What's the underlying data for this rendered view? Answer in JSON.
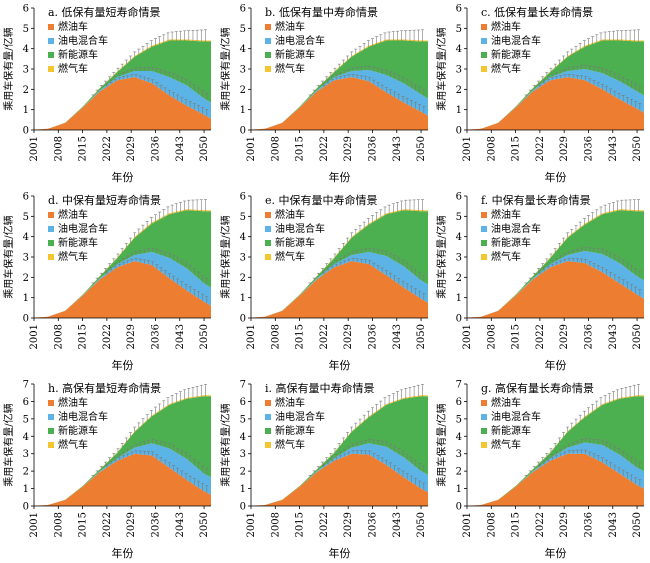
{
  "chart_data": [
    {
      "type": "area",
      "stacked": true,
      "title": "a. 低保有量短寿命情景",
      "xlabel": "年份",
      "ylabel": "乘用车保有量/亿辆",
      "x_ticks": [
        "2001",
        "2008",
        "2015",
        "2022",
        "2029",
        "2036",
        "2043",
        "2050"
      ],
      "y_ticks": [
        "0",
        "1",
        "2",
        "3",
        "4",
        "5",
        "6"
      ],
      "ylim": [
        0,
        6
      ],
      "xlim": [
        2001,
        2052
      ],
      "legend": {
        "position": "top-left",
        "entries": [
          "燃油车",
          "油电混合车",
          "新能源车",
          "燃气车"
        ]
      },
      "x": [
        2001,
        2005,
        2010,
        2015,
        2020,
        2025,
        2030,
        2035,
        2040,
        2045,
        2050,
        2052
      ],
      "series": [
        {
          "name": "燃油车",
          "color": "#ED7D31",
          "values": [
            0.02,
            0.06,
            0.35,
            1.1,
            1.9,
            2.45,
            2.6,
            2.3,
            1.7,
            1.2,
            0.75,
            0.55
          ]
        },
        {
          "name": "油电混合车",
          "color": "#5BB3E6",
          "values": [
            0,
            0,
            0,
            0.01,
            0.05,
            0.15,
            0.3,
            0.6,
            0.9,
            1.0,
            0.8,
            0.8
          ]
        },
        {
          "name": "新能源车",
          "color": "#4CAF50",
          "values": [
            0,
            0,
            0.01,
            0.03,
            0.1,
            0.25,
            0.7,
            1.2,
            1.8,
            2.2,
            2.8,
            3.0
          ]
        },
        {
          "name": "燃气车",
          "color": "#F2C531",
          "values": [
            0,
            0,
            0,
            0.01,
            0.02,
            0.03,
            0.04,
            0.05,
            0.05,
            0.05,
            0.05,
            0.05
          ]
        }
      ]
    },
    {
      "type": "area",
      "stacked": true,
      "title": "b. 低保有量中寿命情景",
      "xlabel": "年份",
      "ylabel": "乘用车保有量/亿辆",
      "x_ticks": [
        "2001",
        "2008",
        "2015",
        "2022",
        "2029",
        "2036",
        "2043",
        "2050"
      ],
      "y_ticks": [
        "0",
        "1",
        "2",
        "3",
        "4",
        "5",
        "6"
      ],
      "ylim": [
        0,
        6
      ],
      "xlim": [
        2001,
        2052
      ],
      "legend": {
        "position": "top-left",
        "entries": [
          "燃油车",
          "油电混合车",
          "新能源车",
          "燃气车"
        ]
      },
      "x": [
        2001,
        2005,
        2010,
        2015,
        2020,
        2025,
        2030,
        2035,
        2040,
        2045,
        2050,
        2052
      ],
      "series": [
        {
          "name": "燃油车",
          "color": "#ED7D31",
          "values": [
            0.02,
            0.06,
            0.35,
            1.1,
            1.9,
            2.45,
            2.6,
            2.4,
            1.85,
            1.35,
            0.9,
            0.7
          ]
        },
        {
          "name": "油电混合车",
          "color": "#5BB3E6",
          "values": [
            0,
            0,
            0,
            0.01,
            0.05,
            0.15,
            0.3,
            0.55,
            0.85,
            0.95,
            0.85,
            0.85
          ]
        },
        {
          "name": "新能源车",
          "color": "#4CAF50",
          "values": [
            0,
            0,
            0.01,
            0.03,
            0.1,
            0.25,
            0.7,
            1.15,
            1.7,
            2.1,
            2.6,
            2.8
          ]
        },
        {
          "name": "燃气车",
          "color": "#F2C531",
          "values": [
            0,
            0,
            0,
            0.01,
            0.02,
            0.03,
            0.04,
            0.05,
            0.05,
            0.05,
            0.05,
            0.05
          ]
        }
      ]
    },
    {
      "type": "area",
      "stacked": true,
      "title": "c. 低保有量长寿命情景",
      "xlabel": "年份",
      "ylabel": "乘用车保有量/亿辆",
      "x_ticks": [
        "2001",
        "2008",
        "2015",
        "2022",
        "2029",
        "2036",
        "2043",
        "2050"
      ],
      "y_ticks": [
        "0",
        "1",
        "2",
        "3",
        "4",
        "5",
        "6"
      ],
      "ylim": [
        0,
        6
      ],
      "xlim": [
        2001,
        2052
      ],
      "legend": {
        "position": "top-left",
        "entries": [
          "燃油车",
          "油电混合车",
          "新能源车",
          "燃气车"
        ]
      },
      "x": [
        2001,
        2005,
        2010,
        2015,
        2020,
        2025,
        2030,
        2035,
        2040,
        2045,
        2050,
        2052
      ],
      "series": [
        {
          "name": "燃油车",
          "color": "#ED7D31",
          "values": [
            0.02,
            0.06,
            0.35,
            1.1,
            1.9,
            2.45,
            2.6,
            2.45,
            2.0,
            1.5,
            1.05,
            0.85
          ]
        },
        {
          "name": "油电混合车",
          "color": "#5BB3E6",
          "values": [
            0,
            0,
            0,
            0.01,
            0.05,
            0.15,
            0.3,
            0.55,
            0.8,
            0.9,
            0.85,
            0.85
          ]
        },
        {
          "name": "新能源车",
          "color": "#4CAF50",
          "values": [
            0,
            0,
            0.01,
            0.03,
            0.1,
            0.25,
            0.7,
            1.1,
            1.6,
            2.0,
            2.45,
            2.65
          ]
        },
        {
          "name": "燃气车",
          "color": "#F2C531",
          "values": [
            0,
            0,
            0,
            0.01,
            0.02,
            0.03,
            0.04,
            0.05,
            0.05,
            0.05,
            0.05,
            0.05
          ]
        }
      ]
    },
    {
      "type": "area",
      "stacked": true,
      "title": "d. 中保有量短寿命情景",
      "xlabel": "年份",
      "ylabel": "乘用车保有量/亿辆",
      "x_ticks": [
        "2001",
        "2008",
        "2015",
        "2022",
        "2029",
        "2036",
        "2043",
        "2050"
      ],
      "y_ticks": [
        "0",
        "1",
        "2",
        "3",
        "4",
        "5",
        "6"
      ],
      "ylim": [
        0,
        6
      ],
      "xlim": [
        2001,
        2052
      ],
      "legend": {
        "position": "top-left",
        "entries": [
          "燃油车",
          "油电混合车",
          "新能源车",
          "燃气车"
        ]
      },
      "x": [
        2001,
        2005,
        2010,
        2015,
        2020,
        2025,
        2030,
        2035,
        2040,
        2045,
        2050,
        2052
      ],
      "series": [
        {
          "name": "燃油车",
          "color": "#ED7D31",
          "values": [
            0.02,
            0.06,
            0.35,
            1.1,
            1.9,
            2.5,
            2.8,
            2.6,
            1.95,
            1.35,
            0.8,
            0.6
          ]
        },
        {
          "name": "油电混合车",
          "color": "#5BB3E6",
          "values": [
            0,
            0,
            0,
            0.01,
            0.05,
            0.15,
            0.3,
            0.65,
            1.0,
            1.1,
            0.9,
            0.9
          ]
        },
        {
          "name": "新能源车",
          "color": "#4CAF50",
          "values": [
            0,
            0,
            0.01,
            0.03,
            0.1,
            0.3,
            0.85,
            1.4,
            2.15,
            2.85,
            3.55,
            3.75
          ]
        },
        {
          "name": "燃气车",
          "color": "#F2C531",
          "values": [
            0,
            0,
            0,
            0.01,
            0.02,
            0.03,
            0.04,
            0.05,
            0.05,
            0.05,
            0.05,
            0.05
          ]
        }
      ]
    },
    {
      "type": "area",
      "stacked": true,
      "title": "e. 中保有量中寿命情景",
      "xlabel": "年份",
      "ylabel": "乘用车保有量/亿辆",
      "x_ticks": [
        "2001",
        "2008",
        "2015",
        "2022",
        "2029",
        "2036",
        "2043",
        "2050"
      ],
      "y_ticks": [
        "0",
        "1",
        "2",
        "3",
        "4",
        "5",
        "6"
      ],
      "ylim": [
        0,
        6
      ],
      "xlim": [
        2001,
        2052
      ],
      "legend": {
        "position": "top-left",
        "entries": [
          "燃油车",
          "油电混合车",
          "新能源车",
          "燃气车"
        ]
      },
      "x": [
        2001,
        2005,
        2010,
        2015,
        2020,
        2025,
        2030,
        2035,
        2040,
        2045,
        2050,
        2052
      ],
      "series": [
        {
          "name": "燃油车",
          "color": "#ED7D31",
          "values": [
            0.02,
            0.06,
            0.35,
            1.1,
            1.9,
            2.5,
            2.8,
            2.65,
            2.1,
            1.5,
            0.95,
            0.75
          ]
        },
        {
          "name": "油电混合车",
          "color": "#5BB3E6",
          "values": [
            0,
            0,
            0,
            0.01,
            0.05,
            0.15,
            0.3,
            0.6,
            0.95,
            1.05,
            0.9,
            0.9
          ]
        },
        {
          "name": "新能源车",
          "color": "#4CAF50",
          "values": [
            0,
            0,
            0.01,
            0.03,
            0.1,
            0.3,
            0.85,
            1.35,
            2.05,
            2.75,
            3.4,
            3.6
          ]
        },
        {
          "name": "燃气车",
          "color": "#F2C531",
          "values": [
            0,
            0,
            0,
            0.01,
            0.02,
            0.03,
            0.04,
            0.05,
            0.05,
            0.05,
            0.05,
            0.05
          ]
        }
      ]
    },
    {
      "type": "area",
      "stacked": true,
      "title": "f. 中保有量长寿命情景",
      "xlabel": "年份",
      "ylabel": "乘用车保有量/亿辆",
      "x_ticks": [
        "2001",
        "2008",
        "2015",
        "2022",
        "2029",
        "2036",
        "2043",
        "2050"
      ],
      "y_ticks": [
        "0",
        "1",
        "2",
        "3",
        "4",
        "5",
        "6"
      ],
      "ylim": [
        0,
        6
      ],
      "xlim": [
        2001,
        2052
      ],
      "legend": {
        "position": "top-left",
        "entries": [
          "燃油车",
          "油电混合车",
          "新能源车",
          "燃气车"
        ]
      },
      "x": [
        2001,
        2005,
        2010,
        2015,
        2020,
        2025,
        2030,
        2035,
        2040,
        2045,
        2050,
        2052
      ],
      "series": [
        {
          "name": "燃油车",
          "color": "#ED7D31",
          "values": [
            0.02,
            0.06,
            0.35,
            1.1,
            1.9,
            2.5,
            2.8,
            2.7,
            2.25,
            1.7,
            1.15,
            0.95
          ]
        },
        {
          "name": "油电混合车",
          "color": "#5BB3E6",
          "values": [
            0,
            0,
            0,
            0.01,
            0.05,
            0.15,
            0.3,
            0.6,
            0.9,
            1.0,
            0.9,
            0.9
          ]
        },
        {
          "name": "新能源车",
          "color": "#4CAF50",
          "values": [
            0,
            0,
            0.01,
            0.03,
            0.1,
            0.3,
            0.85,
            1.3,
            1.95,
            2.6,
            3.2,
            3.4
          ]
        },
        {
          "name": "燃气车",
          "color": "#F2C531",
          "values": [
            0,
            0,
            0,
            0.01,
            0.02,
            0.03,
            0.04,
            0.05,
            0.05,
            0.05,
            0.05,
            0.05
          ]
        }
      ]
    },
    {
      "type": "area",
      "stacked": true,
      "title": "h. 高保有量短寿命情景",
      "xlabel": "年份",
      "ylabel": "乘用车保有量/亿辆",
      "x_ticks": [
        "2001",
        "2008",
        "2015",
        "2022",
        "2029",
        "2036",
        "2043",
        "2050"
      ],
      "y_ticks": [
        "0",
        "1",
        "2",
        "3",
        "4",
        "5",
        "6",
        "7"
      ],
      "ylim": [
        0,
        7
      ],
      "xlim": [
        2001,
        2052
      ],
      "legend": {
        "position": "top-left",
        "entries": [
          "燃油车",
          "油电混合车",
          "新能源车",
          "燃气车"
        ]
      },
      "x": [
        2001,
        2005,
        2010,
        2015,
        2020,
        2025,
        2030,
        2035,
        2040,
        2045,
        2050,
        2052
      ],
      "series": [
        {
          "name": "燃油车",
          "color": "#ED7D31",
          "values": [
            0.02,
            0.06,
            0.35,
            1.1,
            1.95,
            2.6,
            3.0,
            2.9,
            2.2,
            1.5,
            0.85,
            0.65
          ]
        },
        {
          "name": "油电混合车",
          "color": "#5BB3E6",
          "values": [
            0,
            0,
            0,
            0.01,
            0.05,
            0.15,
            0.35,
            0.7,
            1.1,
            1.2,
            1.0,
            1.0
          ]
        },
        {
          "name": "新能源车",
          "color": "#4CAF50",
          "values": [
            0,
            0,
            0.01,
            0.03,
            0.1,
            0.3,
            0.9,
            1.55,
            2.5,
            3.45,
            4.45,
            4.65
          ]
        },
        {
          "name": "燃气车",
          "color": "#F2C531",
          "values": [
            0,
            0,
            0,
            0.01,
            0.02,
            0.03,
            0.04,
            0.05,
            0.05,
            0.05,
            0.05,
            0.05
          ]
        }
      ]
    },
    {
      "type": "area",
      "stacked": true,
      "title": "i. 高保有量中寿命情景",
      "xlabel": "年份",
      "ylabel": "乘用车保有量/亿辆",
      "x_ticks": [
        "2001",
        "2008",
        "2015",
        "2022",
        "2029",
        "2036",
        "2043",
        "2050"
      ],
      "y_ticks": [
        "0",
        "1",
        "2",
        "3",
        "4",
        "5",
        "6",
        "7"
      ],
      "ylim": [
        0,
        7
      ],
      "xlim": [
        2001,
        2052
      ],
      "legend": {
        "position": "top-left",
        "entries": [
          "燃油车",
          "油电混合车",
          "新能源车",
          "燃气车"
        ]
      },
      "x": [
        2001,
        2005,
        2010,
        2015,
        2020,
        2025,
        2030,
        2035,
        2040,
        2045,
        2050,
        2052
      ],
      "series": [
        {
          "name": "燃油车",
          "color": "#ED7D31",
          "values": [
            0.02,
            0.06,
            0.35,
            1.1,
            1.95,
            2.6,
            3.0,
            2.95,
            2.35,
            1.65,
            1.0,
            0.8
          ]
        },
        {
          "name": "油电混合车",
          "color": "#5BB3E6",
          "values": [
            0,
            0,
            0,
            0.01,
            0.05,
            0.15,
            0.35,
            0.65,
            1.05,
            1.15,
            1.0,
            1.0
          ]
        },
        {
          "name": "新能源车",
          "color": "#4CAF50",
          "values": [
            0,
            0,
            0.01,
            0.03,
            0.1,
            0.3,
            0.9,
            1.5,
            2.4,
            3.35,
            4.3,
            4.5
          ]
        },
        {
          "name": "燃气车",
          "color": "#F2C531",
          "values": [
            0,
            0,
            0,
            0.01,
            0.02,
            0.03,
            0.04,
            0.05,
            0.05,
            0.05,
            0.05,
            0.05
          ]
        }
      ]
    },
    {
      "type": "area",
      "stacked": true,
      "title": "g. 高保有量长寿命情景",
      "xlabel": "年份",
      "ylabel": "乘用车保有量/亿辆",
      "x_ticks": [
        "2001",
        "2008",
        "2015",
        "2022",
        "2029",
        "2036",
        "2043",
        "2050"
      ],
      "y_ticks": [
        "0",
        "1",
        "2",
        "3",
        "4",
        "5",
        "6",
        "7"
      ],
      "ylim": [
        0,
        7
      ],
      "xlim": [
        2001,
        2052
      ],
      "legend": {
        "position": "top-left",
        "entries": [
          "燃油车",
          "油电混合车",
          "新能源车",
          "燃气车"
        ]
      },
      "x": [
        2001,
        2005,
        2010,
        2015,
        2020,
        2025,
        2030,
        2035,
        2040,
        2045,
        2050,
        2052
      ],
      "series": [
        {
          "name": "燃油车",
          "color": "#ED7D31",
          "values": [
            0.02,
            0.06,
            0.35,
            1.1,
            1.95,
            2.6,
            3.0,
            3.0,
            2.5,
            1.85,
            1.2,
            1.0
          ]
        },
        {
          "name": "油电混合车",
          "color": "#5BB3E6",
          "values": [
            0,
            0,
            0,
            0.01,
            0.05,
            0.15,
            0.35,
            0.65,
            1.0,
            1.1,
            1.0,
            1.0
          ]
        },
        {
          "name": "新能源车",
          "color": "#4CAF50",
          "values": [
            0,
            0,
            0.01,
            0.03,
            0.1,
            0.3,
            0.9,
            1.45,
            2.3,
            3.2,
            4.1,
            4.3
          ]
        },
        {
          "name": "燃气车",
          "color": "#F2C531",
          "values": [
            0,
            0,
            0,
            0.01,
            0.02,
            0.03,
            0.04,
            0.05,
            0.05,
            0.05,
            0.05,
            0.05
          ]
        }
      ]
    }
  ]
}
